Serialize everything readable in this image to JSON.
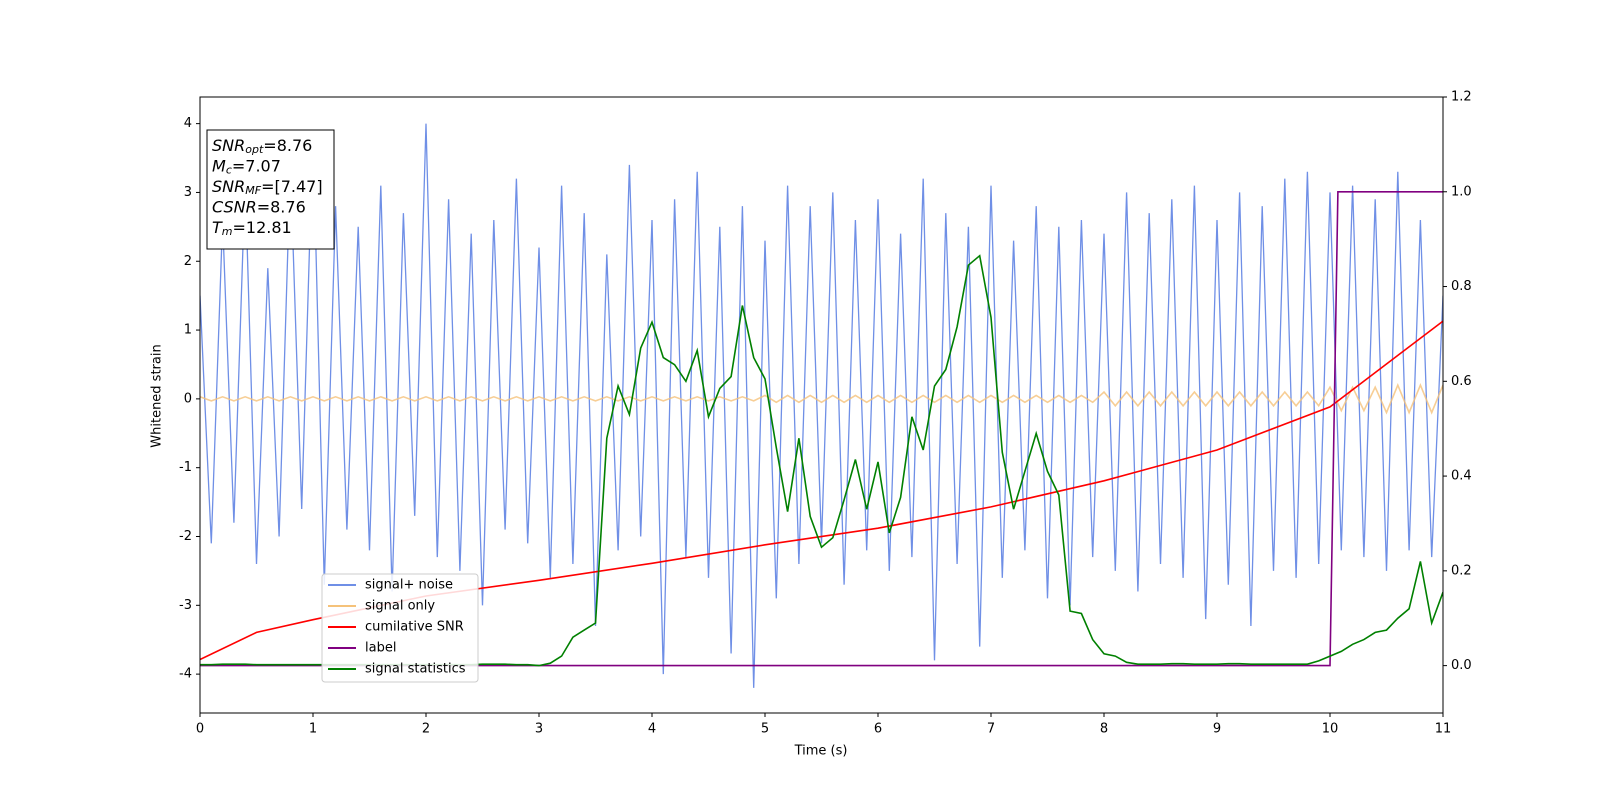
{
  "chart_data": {
    "type": "line",
    "xlabel": "Time (s)",
    "ylabel": "Whitened strain",
    "xlim": [
      0,
      11
    ],
    "xticks": [
      0,
      1,
      2,
      3,
      4,
      5,
      6,
      7,
      8,
      9,
      10,
      11
    ],
    "ylim": [
      -4.565,
      4.387
    ],
    "yticks": [
      -4,
      -3,
      -2,
      -1,
      0,
      1,
      2,
      3,
      4
    ],
    "y2lim": [
      -0.1,
      1.2
    ],
    "y2ticks": [
      {
        "value": 0,
        "label": "0.0"
      },
      {
        "value": 0.2,
        "label": "0.2"
      },
      {
        "value": 0.4,
        "label": "0.4"
      },
      {
        "value": 0.6,
        "label": "0.6"
      },
      {
        "value": 0.8,
        "label": "0.8"
      },
      {
        "value": 1,
        "label": "1.0"
      },
      {
        "value": 1.2,
        "label": "1.2"
      }
    ],
    "x": [
      0,
      0.1,
      0.2,
      0.3,
      0.4,
      0.5,
      0.6,
      0.7,
      0.8,
      0.9,
      1,
      1.1,
      1.2,
      1.3,
      1.4,
      1.5,
      1.6,
      1.7,
      1.8,
      1.9,
      2,
      2.1,
      2.2,
      2.3,
      2.4,
      2.5,
      2.6,
      2.7,
      2.8,
      2.9,
      3,
      3.1,
      3.2,
      3.3,
      3.4,
      3.5,
      3.6,
      3.7,
      3.8,
      3.9,
      4,
      4.1,
      4.2,
      4.3,
      4.4,
      4.5,
      4.6,
      4.7,
      4.8,
      4.9,
      5,
      5.1,
      5.2,
      5.3,
      5.4,
      5.5,
      5.6,
      5.7,
      5.8,
      5.9,
      6,
      6.1,
      6.2,
      6.3,
      6.4,
      6.5,
      6.6,
      6.7,
      6.8,
      6.9,
      7,
      7.1,
      7.2,
      7.3,
      7.4,
      7.5,
      7.6,
      7.7,
      7.8,
      7.9,
      8,
      8.1,
      8.2,
      8.3,
      8.4,
      8.5,
      8.6,
      8.7,
      8.8,
      8.9,
      9,
      9.1,
      9.2,
      9.3,
      9.4,
      9.5,
      9.6,
      9.7,
      9.8,
      9.9,
      10,
      10.1,
      10.2,
      10.3,
      10.4,
      10.5,
      10.6,
      10.7,
      10.8,
      10.9,
      11
    ],
    "series": [
      {
        "name": "signal+ noise",
        "color": "#6f8fe6",
        "values": [
          1.5,
          -2.1,
          2.6,
          -1.8,
          3.2,
          -2.4,
          1.9,
          -2.0,
          3.4,
          -1.6,
          3.9,
          -2.7,
          2.8,
          -1.9,
          2.5,
          -2.2,
          3.1,
          -2.8,
          2.7,
          -1.7,
          4.0,
          -2.3,
          2.9,
          -2.5,
          2.4,
          -3.0,
          2.6,
          -1.9,
          3.2,
          -2.1,
          2.2,
          -2.6,
          3.1,
          -2.4,
          2.7,
          -3.3,
          2.1,
          -2.2,
          3.4,
          -2.0,
          2.6,
          -4.0,
          2.9,
          -2.3,
          3.3,
          -2.6,
          2.5,
          -3.7,
          2.8,
          -4.2,
          2.3,
          -2.9,
          3.1,
          -2.4,
          2.8,
          -2.1,
          3.0,
          -2.7,
          2.6,
          -2.2,
          2.9,
          -2.5,
          2.4,
          -2.3,
          3.2,
          -3.8,
          2.7,
          -2.4,
          2.5,
          -3.6,
          3.1,
          -2.6,
          2.3,
          -2.2,
          2.8,
          -2.9,
          2.5,
          -3.0,
          2.6,
          -2.3,
          2.4,
          -2.5,
          3.0,
          -2.8,
          2.7,
          -2.4,
          2.9,
          -2.6,
          3.1,
          -3.2,
          2.6,
          -2.7,
          3.0,
          -3.3,
          2.8,
          -2.5,
          3.2,
          -2.6,
          3.3,
          -2.4,
          3.0,
          -2.2,
          3.1,
          -2.3,
          2.9,
          -2.5,
          3.3,
          -2.2,
          2.6,
          -2.3,
          1.5
        ]
      },
      {
        "name": "signal only",
        "color": "#f5c27a",
        "values": [
          0.03,
          -0.03,
          0.03,
          -0.03,
          0.03,
          -0.03,
          0.03,
          -0.03,
          0.03,
          -0.03,
          0.03,
          -0.03,
          0.03,
          -0.03,
          0.03,
          -0.03,
          0.03,
          -0.03,
          0.03,
          -0.03,
          0.03,
          -0.03,
          0.03,
          -0.03,
          0.03,
          -0.03,
          0.03,
          -0.03,
          0.03,
          -0.03,
          0.03,
          -0.03,
          0.03,
          -0.03,
          0.03,
          -0.03,
          0.03,
          -0.03,
          0.03,
          -0.03,
          0.03,
          -0.03,
          0.03,
          -0.03,
          0.03,
          -0.03,
          0.03,
          -0.03,
          0.03,
          -0.03,
          0.05,
          -0.05,
          0.05,
          -0.05,
          0.05,
          -0.05,
          0.05,
          -0.05,
          0.05,
          -0.05,
          0.05,
          -0.05,
          0.05,
          -0.05,
          0.05,
          -0.05,
          0.05,
          -0.05,
          0.05,
          -0.05,
          0.05,
          -0.05,
          0.05,
          -0.05,
          0.05,
          -0.05,
          0.05,
          -0.05,
          0.05,
          -0.05,
          0.1,
          -0.1,
          0.1,
          -0.1,
          0.1,
          -0.1,
          0.1,
          -0.1,
          0.1,
          -0.1,
          0.1,
          -0.1,
          0.1,
          -0.1,
          0.1,
          -0.1,
          0.1,
          -0.1,
          0.1,
          -0.1,
          0.17,
          -0.17,
          0.17,
          -0.17,
          0.17,
          -0.2,
          0.2,
          -0.2,
          0.2,
          -0.2,
          0.2
        ]
      },
      {
        "name": "cumilative SNR",
        "color": "#ff0000",
        "axis": "y2",
        "x": [
          0,
          0.5,
          1,
          2,
          3,
          4,
          5,
          6,
          7,
          8,
          9,
          10,
          11
        ],
        "values": [
          0.013,
          0.07,
          0.097,
          0.147,
          0.18,
          0.216,
          0.255,
          0.29,
          0.335,
          0.39,
          0.455,
          0.546,
          0.727
        ]
      },
      {
        "name": "label",
        "color": "#800080",
        "axis": "y2",
        "x": [
          0,
          10,
          10.07,
          11
        ],
        "values": [
          0,
          0,
          1,
          1
        ]
      },
      {
        "name": "signal statistics",
        "color": "#008000",
        "axis": "y2",
        "values": [
          0.002,
          0.002,
          0.003,
          0.003,
          0.003,
          0.002,
          0.002,
          0.002,
          0.002,
          0.002,
          0.002,
          0.002,
          0.002,
          0.002,
          0.002,
          0.002,
          0.002,
          0.002,
          0.002,
          0.002,
          0.002,
          0.002,
          0.002,
          0.002,
          0.002,
          0.003,
          0.003,
          0.003,
          0.002,
          0.002,
          0.0,
          0.005,
          0.02,
          0.06,
          0.075,
          0.09,
          0.48,
          0.59,
          0.53,
          0.67,
          0.725,
          0.65,
          0.635,
          0.6,
          0.665,
          0.525,
          0.585,
          0.61,
          0.76,
          0.65,
          0.605,
          0.46,
          0.325,
          0.48,
          0.315,
          0.25,
          0.27,
          0.35,
          0.435,
          0.33,
          0.43,
          0.28,
          0.355,
          0.525,
          0.455,
          0.59,
          0.625,
          0.715,
          0.845,
          0.865,
          0.735,
          0.45,
          0.33,
          0.41,
          0.49,
          0.41,
          0.36,
          0.115,
          0.11,
          0.055,
          0.025,
          0.02,
          0.007,
          0.003,
          0.003,
          0.003,
          0.004,
          0.004,
          0.003,
          0.003,
          0.003,
          0.004,
          0.004,
          0.003,
          0.003,
          0.003,
          0.003,
          0.003,
          0.003,
          0.01,
          0.02,
          0.03,
          0.045,
          0.055,
          0.07,
          0.075,
          0.1,
          0.12,
          0.22,
          0.09,
          0.155
        ]
      }
    ],
    "stats": [
      {
        "symbol": "SNR",
        "sub": "opt",
        "text": "=8.76"
      },
      {
        "symbol": "M",
        "sub": "c",
        "text": "=7.07"
      },
      {
        "symbol": "SNR",
        "sub": "MF",
        "text": "=[7.47]"
      },
      {
        "symbol": "CSNR",
        "text": "=8.76"
      },
      {
        "symbol": "T",
        "sub": "m",
        "text": "=12.81"
      }
    ]
  }
}
